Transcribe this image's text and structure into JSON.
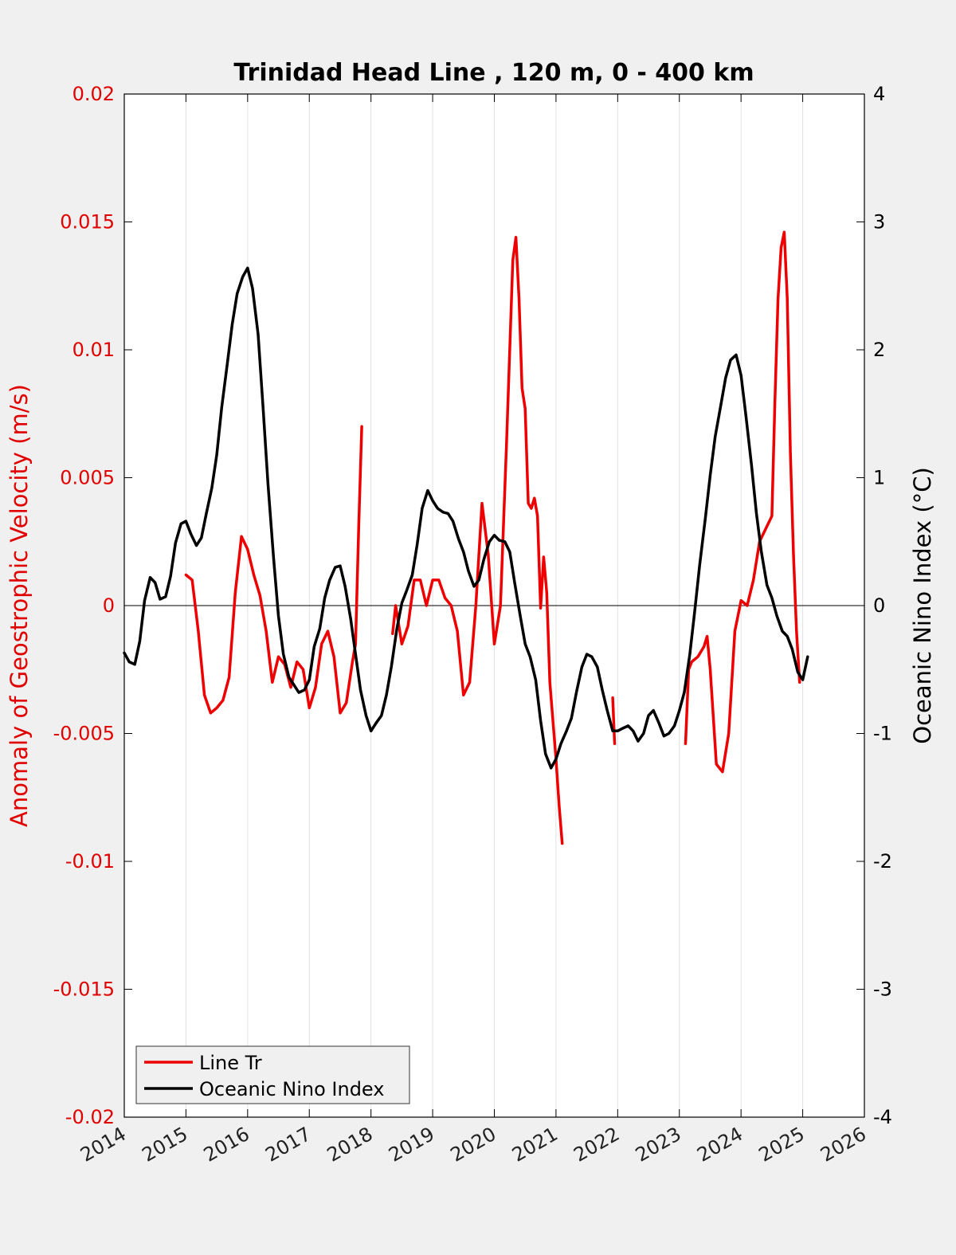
{
  "chart_data": {
    "type": "line",
    "title": "Trinidad Head Line , 120 m, 0 - 400 km",
    "xlim": [
      2014,
      2026
    ],
    "x_ticks": [
      "2014",
      "2015",
      "2016",
      "2017",
      "2018",
      "2019",
      "2020",
      "2021",
      "2022",
      "2023",
      "2024",
      "2025",
      "2026"
    ],
    "ylabel_left": "Anomaly of Geostrophic Velocity (m/s)",
    "ylim_left": [
      -0.02,
      0.02
    ],
    "y_ticks_left": [
      "0.02",
      "0.015",
      "0.01",
      "0.005",
      "0",
      "-0.005",
      "-0.01",
      "-0.015",
      "-0.02"
    ],
    "ylabel_right": "Oceanic Nino Index (°C)",
    "ylim_right": [
      -4,
      4
    ],
    "y_ticks_right": [
      "4",
      "3",
      "2",
      "1",
      "0",
      "-1",
      "-2",
      "-3",
      "-4"
    ],
    "grid": "vertical only",
    "legend_position": "bottom-left",
    "colors": {
      "line_tr": "#ee0000",
      "oni": "#000000"
    },
    "series": [
      {
        "name": "Line Tr",
        "axis": "left",
        "segments": [
          [
            [
              2015.0,
              0.0012
            ],
            [
              2015.1,
              0.001
            ],
            [
              2015.2,
              -0.001
            ],
            [
              2015.3,
              -0.0035
            ],
            [
              2015.4,
              -0.0042
            ],
            [
              2015.5,
              -0.004
            ],
            [
              2015.6,
              -0.0037
            ],
            [
              2015.7,
              -0.0028
            ],
            [
              2015.8,
              0.0005
            ],
            [
              2015.9,
              0.0027
            ],
            [
              2016.0,
              0.0022
            ],
            [
              2016.1,
              0.0012
            ],
            [
              2016.2,
              0.0004
            ],
            [
              2016.3,
              -0.001
            ],
            [
              2016.4,
              -0.003
            ],
            [
              2016.5,
              -0.002
            ],
            [
              2016.6,
              -0.0023
            ],
            [
              2016.7,
              -0.0032
            ],
            [
              2016.8,
              -0.0022
            ],
            [
              2016.9,
              -0.0025
            ],
            [
              2017.0,
              -0.004
            ],
            [
              2017.1,
              -0.0032
            ],
            [
              2017.2,
              -0.0015
            ],
            [
              2017.3,
              -0.001
            ],
            [
              2017.4,
              -0.002
            ],
            [
              2017.5,
              -0.0042
            ],
            [
              2017.6,
              -0.0038
            ],
            [
              2017.7,
              -0.0022
            ],
            [
              2017.75,
              -0.0015
            ],
            [
              2017.8,
              0.003
            ],
            [
              2017.85,
              0.007
            ]
          ],
          [
            [
              2018.35,
              -0.0011
            ],
            [
              2018.4,
              0.0
            ],
            [
              2018.5,
              -0.0015
            ],
            [
              2018.6,
              -0.0008
            ],
            [
              2018.7,
              0.001
            ],
            [
              2018.8,
              0.001
            ],
            [
              2018.9,
              0.0
            ],
            [
              2019.0,
              0.001
            ],
            [
              2019.1,
              0.001
            ],
            [
              2019.2,
              0.0003
            ],
            [
              2019.3,
              0.0
            ],
            [
              2019.4,
              -0.001
            ],
            [
              2019.5,
              -0.0035
            ],
            [
              2019.6,
              -0.003
            ],
            [
              2019.7,
              0.0
            ],
            [
              2019.8,
              0.004
            ],
            [
              2019.9,
              0.002
            ],
            [
              2020.0,
              -0.0015
            ],
            [
              2020.1,
              0.0
            ],
            [
              2020.2,
              0.0065
            ],
            [
              2020.3,
              0.0135
            ],
            [
              2020.35,
              0.0144
            ],
            [
              2020.4,
              0.012
            ],
            [
              2020.45,
              0.0085
            ],
            [
              2020.5,
              0.0077
            ],
            [
              2020.55,
              0.004
            ],
            [
              2020.6,
              0.0038
            ],
            [
              2020.65,
              0.0042
            ],
            [
              2020.7,
              0.0035
            ],
            [
              2020.75,
              -0.0001
            ],
            [
              2020.8,
              0.0019
            ],
            [
              2020.85,
              0.0005
            ],
            [
              2020.9,
              -0.003
            ],
            [
              2021.0,
              -0.006
            ],
            [
              2021.05,
              -0.0078
            ],
            [
              2021.1,
              -0.0093
            ]
          ],
          [
            [
              2021.92,
              -0.0036
            ],
            [
              2021.95,
              -0.0054
            ]
          ],
          [
            [
              2023.1,
              -0.0054
            ],
            [
              2023.15,
              -0.0025
            ],
            [
              2023.2,
              -0.0022
            ],
            [
              2023.3,
              -0.002
            ],
            [
              2023.4,
              -0.0016
            ],
            [
              2023.45,
              -0.0012
            ],
            [
              2023.5,
              -0.0025
            ],
            [
              2023.6,
              -0.0062
            ],
            [
              2023.7,
              -0.0065
            ],
            [
              2023.8,
              -0.005
            ],
            [
              2023.9,
              -0.001
            ],
            [
              2024.0,
              0.0002
            ],
            [
              2024.1,
              0.0
            ],
            [
              2024.2,
              0.001
            ],
            [
              2024.3,
              0.0025
            ],
            [
              2024.4,
              0.003
            ],
            [
              2024.5,
              0.0035
            ],
            [
              2024.55,
              0.008
            ],
            [
              2024.6,
              0.012
            ],
            [
              2024.65,
              0.014
            ],
            [
              2024.7,
              0.0146
            ],
            [
              2024.75,
              0.012
            ],
            [
              2024.8,
              0.006
            ],
            [
              2024.85,
              0.002
            ],
            [
              2024.9,
              -0.001
            ],
            [
              2024.95,
              -0.003
            ]
          ]
        ]
      },
      {
        "name": "Oceanic Nino Index",
        "axis": "right",
        "segments": [
          [
            [
              2014.0,
              -0.37
            ],
            [
              2014.08,
              -0.44
            ],
            [
              2014.17,
              -0.46
            ],
            [
              2014.25,
              -0.28
            ],
            [
              2014.33,
              0.04
            ],
            [
              2014.42,
              0.22
            ],
            [
              2014.5,
              0.18
            ],
            [
              2014.58,
              0.05
            ],
            [
              2014.67,
              0.07
            ],
            [
              2014.75,
              0.23
            ],
            [
              2014.83,
              0.49
            ],
            [
              2014.92,
              0.64
            ],
            [
              2015.0,
              0.66
            ],
            [
              2015.08,
              0.56
            ],
            [
              2015.17,
              0.47
            ],
            [
              2015.25,
              0.53
            ],
            [
              2015.33,
              0.72
            ],
            [
              2015.42,
              0.92
            ],
            [
              2015.5,
              1.18
            ],
            [
              2015.58,
              1.55
            ],
            [
              2015.67,
              1.89
            ],
            [
              2015.75,
              2.2
            ],
            [
              2015.83,
              2.44
            ],
            [
              2015.92,
              2.57
            ],
            [
              2016.0,
              2.64
            ],
            [
              2016.08,
              2.48
            ],
            [
              2016.17,
              2.12
            ],
            [
              2016.25,
              1.55
            ],
            [
              2016.33,
              0.95
            ],
            [
              2016.42,
              0.38
            ],
            [
              2016.5,
              -0.08
            ],
            [
              2016.58,
              -0.38
            ],
            [
              2016.67,
              -0.56
            ],
            [
              2016.75,
              -0.62
            ],
            [
              2016.83,
              -0.68
            ],
            [
              2016.92,
              -0.66
            ],
            [
              2017.0,
              -0.58
            ],
            [
              2017.08,
              -0.32
            ],
            [
              2017.17,
              -0.18
            ],
            [
              2017.25,
              0.06
            ],
            [
              2017.33,
              0.2
            ],
            [
              2017.42,
              0.3
            ],
            [
              2017.5,
              0.31
            ],
            [
              2017.58,
              0.15
            ],
            [
              2017.67,
              -0.1
            ],
            [
              2017.75,
              -0.38
            ],
            [
              2017.83,
              -0.66
            ],
            [
              2017.92,
              -0.86
            ],
            [
              2018.0,
              -0.98
            ],
            [
              2018.08,
              -0.92
            ],
            [
              2018.17,
              -0.86
            ],
            [
              2018.25,
              -0.7
            ],
            [
              2018.33,
              -0.48
            ],
            [
              2018.42,
              -0.18
            ],
            [
              2018.5,
              0.02
            ],
            [
              2018.58,
              0.12
            ],
            [
              2018.67,
              0.24
            ],
            [
              2018.75,
              0.48
            ],
            [
              2018.83,
              0.76
            ],
            [
              2018.92,
              0.9
            ],
            [
              2019.0,
              0.82
            ],
            [
              2019.08,
              0.76
            ],
            [
              2019.17,
              0.73
            ],
            [
              2019.25,
              0.72
            ],
            [
              2019.33,
              0.66
            ],
            [
              2019.42,
              0.52
            ],
            [
              2019.5,
              0.42
            ],
            [
              2019.58,
              0.27
            ],
            [
              2019.67,
              0.15
            ],
            [
              2019.75,
              0.2
            ],
            [
              2019.83,
              0.36
            ],
            [
              2019.92,
              0.5
            ],
            [
              2020.0,
              0.55
            ],
            [
              2020.08,
              0.51
            ],
            [
              2020.17,
              0.5
            ],
            [
              2020.25,
              0.42
            ],
            [
              2020.33,
              0.18
            ],
            [
              2020.42,
              -0.08
            ],
            [
              2020.5,
              -0.3
            ],
            [
              2020.58,
              -0.4
            ],
            [
              2020.67,
              -0.58
            ],
            [
              2020.75,
              -0.9
            ],
            [
              2020.83,
              -1.16
            ],
            [
              2020.92,
              -1.27
            ],
            [
              2021.0,
              -1.2
            ],
            [
              2021.08,
              -1.08
            ],
            [
              2021.17,
              -0.98
            ],
            [
              2021.25,
              -0.88
            ],
            [
              2021.33,
              -0.68
            ],
            [
              2021.42,
              -0.48
            ],
            [
              2021.5,
              -0.38
            ],
            [
              2021.58,
              -0.4
            ],
            [
              2021.67,
              -0.48
            ],
            [
              2021.75,
              -0.66
            ],
            [
              2021.83,
              -0.82
            ],
            [
              2021.92,
              -0.98
            ],
            [
              2022.0,
              -0.98
            ],
            [
              2022.08,
              -0.96
            ],
            [
              2022.17,
              -0.94
            ],
            [
              2022.25,
              -0.98
            ],
            [
              2022.33,
              -1.06
            ],
            [
              2022.42,
              -1.0
            ],
            [
              2022.5,
              -0.86
            ],
            [
              2022.58,
              -0.82
            ],
            [
              2022.67,
              -0.92
            ],
            [
              2022.75,
              -1.02
            ],
            [
              2022.83,
              -1.0
            ],
            [
              2022.92,
              -0.94
            ],
            [
              2023.0,
              -0.82
            ],
            [
              2023.08,
              -0.68
            ],
            [
              2023.17,
              -0.38
            ],
            [
              2023.25,
              -0.04
            ],
            [
              2023.33,
              0.32
            ],
            [
              2023.42,
              0.68
            ],
            [
              2023.5,
              1.02
            ],
            [
              2023.58,
              1.32
            ],
            [
              2023.67,
              1.56
            ],
            [
              2023.75,
              1.78
            ],
            [
              2023.83,
              1.92
            ],
            [
              2023.92,
              1.96
            ],
            [
              2024.0,
              1.8
            ],
            [
              2024.08,
              1.48
            ],
            [
              2024.17,
              1.1
            ],
            [
              2024.25,
              0.72
            ],
            [
              2024.33,
              0.42
            ],
            [
              2024.42,
              0.16
            ],
            [
              2024.5,
              0.06
            ],
            [
              2024.58,
              -0.08
            ],
            [
              2024.67,
              -0.2
            ],
            [
              2024.75,
              -0.24
            ],
            [
              2024.83,
              -0.34
            ],
            [
              2024.92,
              -0.52
            ],
            [
              2025.0,
              -0.58
            ],
            [
              2025.08,
              -0.4
            ]
          ]
        ]
      }
    ]
  }
}
